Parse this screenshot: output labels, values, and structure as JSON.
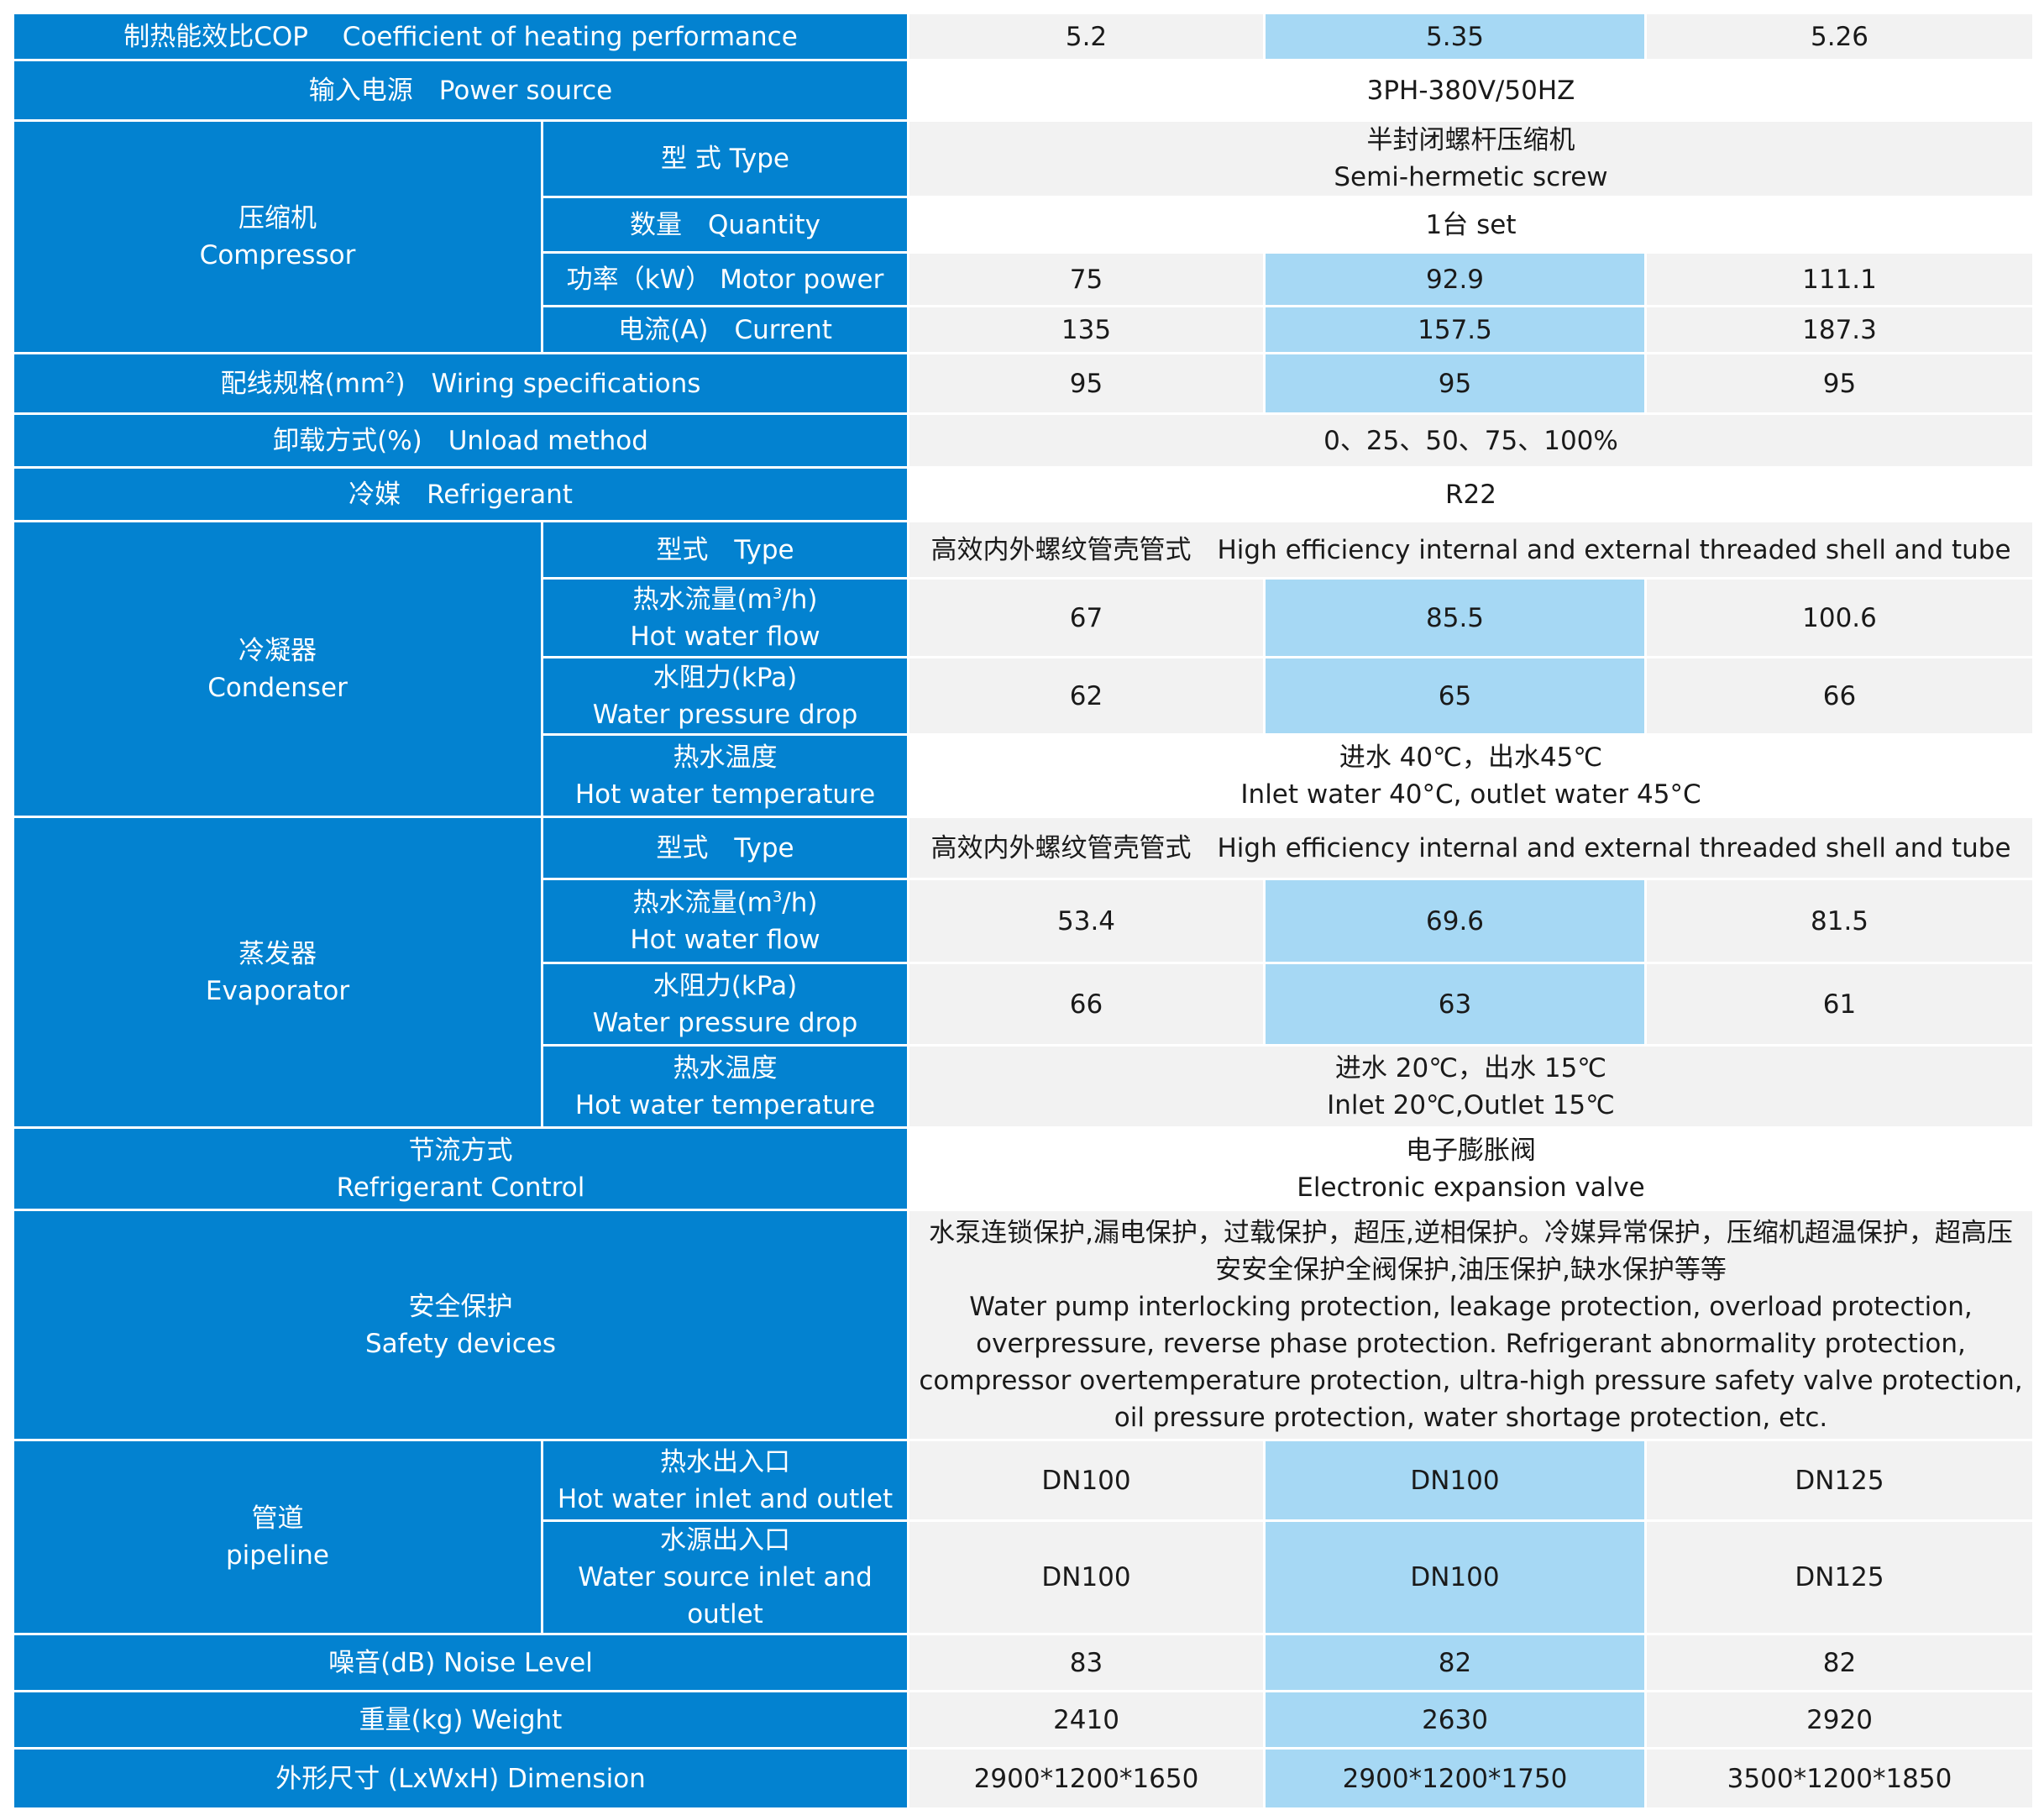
{
  "cop": {
    "label": "制热能效比COP　 Coefficient of heating performance",
    "values": [
      "5.2",
      "5.35",
      "5.26"
    ]
  },
  "power_source": {
    "label": "输入电源　Power source",
    "value": "3PH-380V/50HZ"
  },
  "compressor": {
    "label_cn": "压缩机",
    "label_en": "Compressor",
    "type": {
      "label": "型 式  Type",
      "value_cn": "半封闭螺杆压缩机",
      "value_en": "Semi-hermetic screw"
    },
    "quantity": {
      "label": "数量　Quantity",
      "value": "1台 set"
    },
    "motor_power": {
      "label": "功率（kW）  Motor power",
      "values": [
        "75",
        "92.9",
        "111.1"
      ]
    },
    "current": {
      "label": "电流(A)　Current",
      "values": [
        "135",
        "157.5",
        "187.3"
      ]
    }
  },
  "wiring": {
    "label_pre": "配线规格(mm",
    "label_sup": "2",
    "label_post": ")　Wiring specifications",
    "values": [
      "95",
      "95",
      "95"
    ]
  },
  "unload": {
    "label": "卸载方式(%)　Unload method",
    "value": "0、25、50、75、100%"
  },
  "refrigerant": {
    "label": "冷媒　Refrigerant",
    "value": "R22"
  },
  "condenser": {
    "label_cn": "冷凝器",
    "label_en": "Condenser",
    "type": {
      "label": "型式　Type",
      "value": "高效内外螺纹管壳管式　High efficiency internal and external threaded shell and tube"
    },
    "flow": {
      "label_pre": "热水流量(m",
      "label_sup": "3",
      "label_post": "/h)",
      "label_en": "Hot water flow",
      "values": [
        "67",
        "85.5",
        "100.6"
      ]
    },
    "pressure": {
      "label_cn": "水阻力(kPa)",
      "label_en": "Water pressure drop",
      "values": [
        "62",
        "65",
        "66"
      ]
    },
    "temperature": {
      "label_cn": "热水温度",
      "label_en": "Hot water temperature",
      "value_cn": "进水 40℃，出水45℃",
      "value_en": "Inlet water 40°C, outlet water 45°C"
    }
  },
  "evaporator": {
    "label_cn": "蒸发器",
    "label_en": "Evaporator",
    "type": {
      "label": "型式　Type",
      "value": "高效内外螺纹管壳管式　High efficiency internal and external threaded shell and tube"
    },
    "flow": {
      "label_pre": "热水流量(m",
      "label_sup": "3",
      "label_post": "/h)",
      "label_en": "Hot water flow",
      "values": [
        "53.4",
        "69.6",
        "81.5"
      ]
    },
    "pressure": {
      "label_cn": "水阻力(kPa)",
      "label_en": "Water pressure drop",
      "values": [
        "66",
        "63",
        "61"
      ]
    },
    "temperature": {
      "label_cn": "热水温度",
      "label_en": "Hot water temperature",
      "value_cn": "进水 20℃，出水 15℃",
      "value_en": "Inlet 20℃,Outlet 15℃"
    }
  },
  "throttle": {
    "label_cn": "节流方式",
    "label_en": "Refrigerant Control",
    "value_cn": "电子膨胀阀",
    "value_en": "Electronic expansion valve"
  },
  "safety": {
    "label_cn": "安全保护",
    "label_en": "Safety devices",
    "value_cn": "水泵连锁保护,漏电保护，过载保护，超压,逆相保护。冷媒异常保护，压缩机超温保护，超高压安安全保护全阀保护,油压保护,缺水保护等等",
    "value_en": "Water pump interlocking protection, leakage protection, overload protection, overpressure, reverse phase protection. Refrigerant abnormality protection, compressor overtemperature protection, ultra-high pressure safety valve protection, oil pressure protection, water shortage protection, etc."
  },
  "pipeline": {
    "label_cn": "管道",
    "label_en": "pipeline",
    "hot_water": {
      "label_cn": "热水出入口",
      "label_en": "Hot water inlet and outlet",
      "values": [
        "DN100",
        "DN100",
        "DN125"
      ]
    },
    "water_source": {
      "label_cn": "水源出入口",
      "label_en": "Water source inlet and outlet",
      "values": [
        "DN100",
        "DN100",
        "DN125"
      ]
    }
  },
  "noise": {
    "label": "噪音(dB)  Noise Level",
    "values": [
      "83",
      "82",
      "82"
    ]
  },
  "weight": {
    "label": "重量(kg)  Weight",
    "values": [
      "2410",
      "2630",
      "2920"
    ]
  },
  "dimension": {
    "label": "外形尺寸 (LxWxH) Dimension",
    "values": [
      "2900*1200*1650",
      "2900*1200*1750",
      "3500*1200*1850"
    ]
  },
  "colors": {
    "header_blue": "#0382d0",
    "highlight_blue": "#a6d8f4",
    "row_gray": "#f2f2f2"
  }
}
